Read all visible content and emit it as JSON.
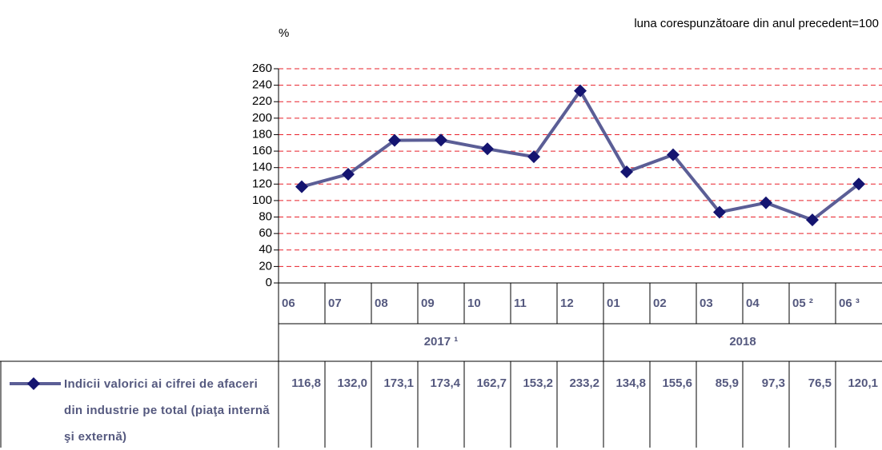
{
  "chart_data": {
    "type": "line",
    "subtitle": "luna corespunzătoare din anul precedent=100",
    "y_label": "%",
    "categories": [
      "06",
      "07",
      "08",
      "09",
      "10",
      "11",
      "12",
      "01",
      "02",
      "03",
      "04",
      "05 ²",
      "06 ³"
    ],
    "groups": [
      {
        "label": "2017 ¹",
        "count": 7
      },
      {
        "label": "2018",
        "count": 6
      }
    ],
    "series": [
      {
        "name": "Indicii valorici ai cifrei de afaceri din industrie pe total (piaţa internă şi externă)",
        "color": "#5b5e96",
        "marker_color": "#141470",
        "values": [
          116.8,
          132.0,
          173.1,
          173.4,
          162.7,
          153.2,
          233.2,
          134.8,
          155.6,
          85.9,
          97.3,
          76.5,
          120.1
        ],
        "value_labels": [
          "116,8",
          "132,0",
          "173,1",
          "173,4",
          "162,7",
          "153,2",
          "233,2",
          "134,8",
          "155,6",
          "85,9",
          "97,3",
          "76,5",
          "120,1"
        ]
      }
    ],
    "ylim": [
      0,
      260
    ],
    "yticks": [
      0,
      20,
      40,
      60,
      80,
      100,
      120,
      140,
      160,
      180,
      200,
      220,
      240,
      260
    ],
    "grid": true
  }
}
